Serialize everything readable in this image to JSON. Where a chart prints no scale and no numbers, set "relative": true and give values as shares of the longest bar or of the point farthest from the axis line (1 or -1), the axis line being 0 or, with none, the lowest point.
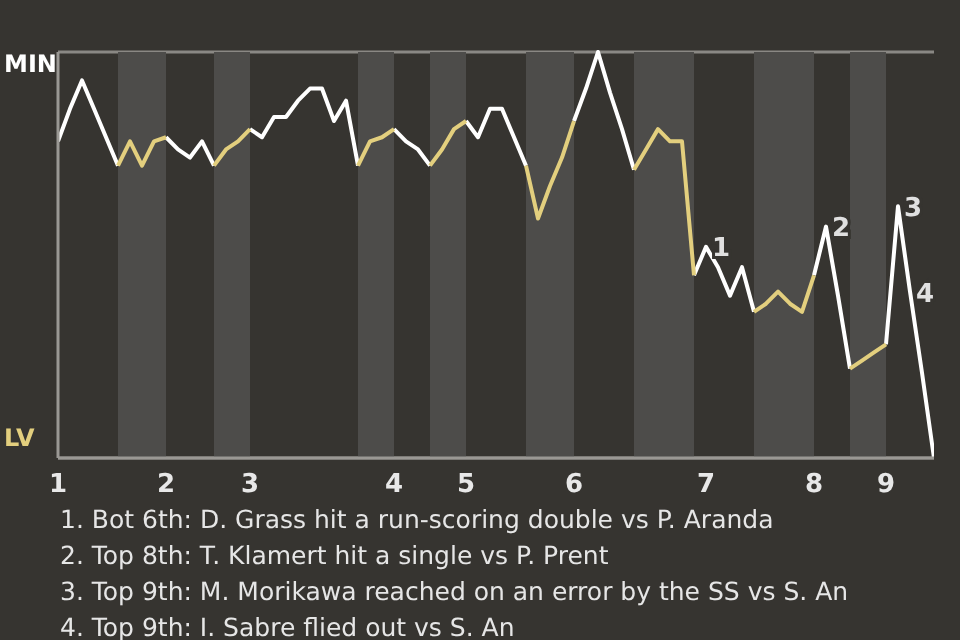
{
  "chart_data": {
    "type": "line",
    "relative": true,
    "grid": "y",
    "legend": "left",
    "categories": [
      "1",
      null,
      null,
      null,
      null,
      null,
      null,
      null,
      null,
      "2",
      null,
      null,
      null,
      null,
      null,
      null,
      "3",
      null,
      null,
      null,
      null,
      null,
      null,
      null,
      null,
      null,
      null,
      null,
      "4",
      null,
      null,
      null,
      null,
      null,
      "5",
      null,
      null,
      null,
      null,
      null,
      null,
      null,
      null,
      "6",
      null,
      null,
      null,
      null,
      null,
      null,
      null,
      null,
      null,
      null,
      "7",
      null,
      null,
      null,
      null,
      null,
      null,
      null,
      null,
      "8",
      null,
      null,
      null,
      null,
      null,
      "9",
      null,
      null,
      null,
      null
    ],
    "series": [
      {
        "name": "MIN",
        "color": "#ffffff",
        "values": [
          0.78,
          0.86,
          0.93,
          0.86,
          0.79,
          0.72,
          null,
          null,
          null,
          0.79,
          0.76,
          0.74,
          0.78,
          0.72,
          null,
          null,
          0.81,
          0.79,
          0.84,
          0.84,
          0.88,
          0.91,
          0.91,
          0.83,
          0.88,
          0.72,
          null,
          null,
          0.81,
          0.78,
          0.76,
          0.72,
          null,
          null,
          0.83,
          0.79,
          0.86,
          0.86,
          0.79,
          0.72,
          null,
          null,
          null,
          0.83,
          0.91,
          1,
          0.9,
          0.81,
          0.71,
          null,
          null,
          null,
          null,
          0.45,
          0.52,
          0.47,
          0.4,
          0.47,
          0.36,
          null,
          null,
          null,
          null,
          0.45,
          0.57,
          0.4,
          0.22,
          null,
          null,
          0.28,
          0.62,
          0.41,
          0.21,
          0
        ]
      },
      {
        "name": "LV",
        "color": "#e3cf7e",
        "values": [
          null,
          null,
          null,
          null,
          null,
          0.72,
          0.78,
          0.72,
          0.78,
          0.79,
          null,
          null,
          null,
          0.72,
          0.76,
          0.78,
          0.81,
          null,
          null,
          null,
          null,
          null,
          null,
          null,
          null,
          0.72,
          0.78,
          0.79,
          0.81,
          null,
          null,
          0.72,
          0.76,
          0.81,
          0.83,
          null,
          null,
          null,
          null,
          0.72,
          0.59,
          0.67,
          0.74,
          0.83,
          null,
          null,
          null,
          null,
          0.71,
          0.76,
          0.81,
          0.78,
          0.78,
          0.45,
          null,
          null,
          null,
          null,
          0.36,
          0.38,
          0.41,
          0.38,
          0.36,
          0.45,
          null,
          null,
          0.22,
          0.24,
          0.26,
          0.28,
          null,
          null,
          null,
          null
        ]
      }
    ],
    "annotations": [
      "1",
      "2",
      "3",
      "4",
      "1. Bot 6th: D. Grass hit a run-scoring double vs P. Aranda",
      "2. Top 8th: T. Klamert hit a single vs P. Prent",
      "3. Top 9th: M. Morikawa reached on an error by the SS vs S. An",
      "4. Top 9th: I. Sabre flied out vs S. An"
    ]
  }
}
